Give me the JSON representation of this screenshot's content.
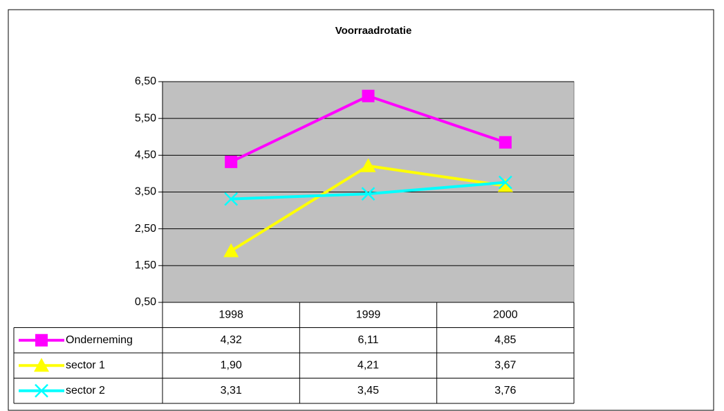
{
  "chart_data": {
    "type": "line",
    "title": "Voorraadrotatie",
    "categories": [
      "1998",
      "1999",
      "2000"
    ],
    "series": [
      {
        "name": "Onderneming",
        "color": "#ff00ff",
        "marker": "square",
        "values": [
          4.32,
          6.11,
          4.85
        ],
        "value_labels": [
          "4,32",
          "6,11",
          "4,85"
        ]
      },
      {
        "name": "sector 1",
        "color": "#ffff00",
        "marker": "triangle",
        "values": [
          1.9,
          4.21,
          3.67
        ],
        "value_labels": [
          "1,90",
          "4,21",
          "3,67"
        ]
      },
      {
        "name": "sector 2",
        "color": "#00ffff",
        "marker": "x",
        "values": [
          3.31,
          3.45,
          3.76
        ],
        "value_labels": [
          "3,31",
          "3,45",
          "3,76"
        ]
      }
    ],
    "ylim": [
      0.5,
      6.5
    ],
    "yticks": [
      {
        "value": 0.5,
        "label": "0,50"
      },
      {
        "value": 1.5,
        "label": "1,50"
      },
      {
        "value": 2.5,
        "label": "2,50"
      },
      {
        "value": 3.5,
        "label": "3,50"
      },
      {
        "value": 4.5,
        "label": "4,50"
      },
      {
        "value": 5.5,
        "label": "5,50"
      },
      {
        "value": 6.5,
        "label": "6,50"
      }
    ],
    "grid": true,
    "plot_background": "#c0c0c0"
  }
}
